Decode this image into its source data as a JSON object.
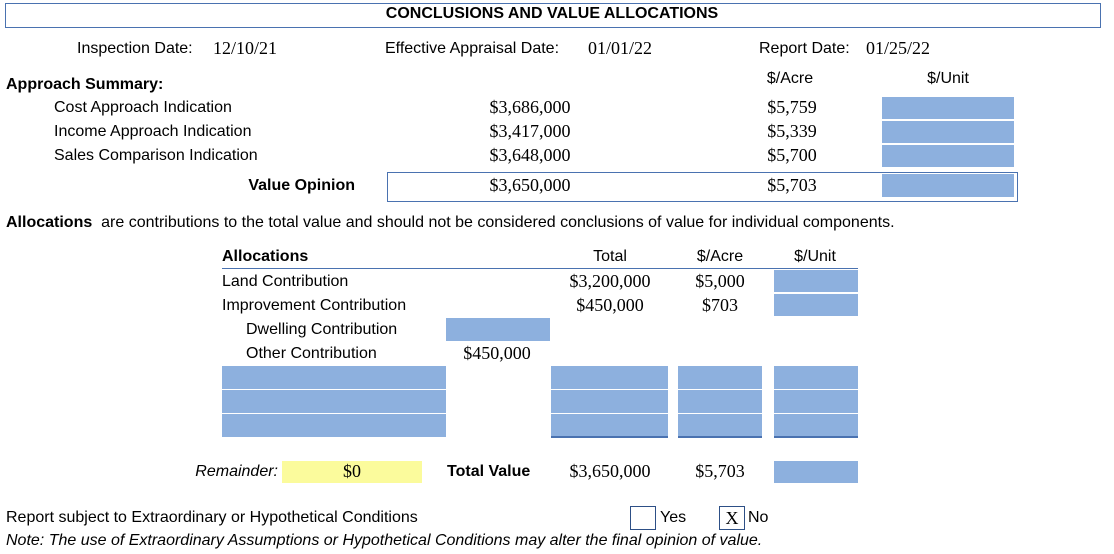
{
  "title": "CONCLUSIONS AND VALUE ALLOCATIONS",
  "dates": {
    "inspection_label": "Inspection Date:",
    "inspection": "12/10/21",
    "effective_label": "Effective Appraisal Date:",
    "effective": "01/01/22",
    "report_label": "Report Date:",
    "report": "01/25/22"
  },
  "approach": {
    "heading": "Approach Summary:",
    "acre_header": "$/Acre",
    "unit_header": "$/Unit",
    "rows": [
      {
        "label": "Cost Approach Indication",
        "value": "$3,686,000",
        "per_acre": "$5,759"
      },
      {
        "label": "Income Approach Indication",
        "value": "$3,417,000",
        "per_acre": "$5,339"
      },
      {
        "label": "Sales Comparison Indication",
        "value": "$3,648,000",
        "per_acre": "$5,700"
      }
    ],
    "opinion_label": "Value Opinion",
    "opinion_value": "$3,650,000",
    "opinion_per_acre": "$5,703"
  },
  "alloc_note": {
    "bold": "Allocations",
    "text": "are contributions to the total value and should not be considered conclusions of value for individual components."
  },
  "alloc": {
    "h_label": "Allocations",
    "h_total": "Total",
    "h_acre": "$/Acre",
    "h_unit": "$/Unit",
    "land_label": "Land Contribution",
    "land_total": "$3,200,000",
    "land_acre": "$5,000",
    "impr_label": "Improvement Contribution",
    "impr_total": "$450,000",
    "impr_acre": "$703",
    "dwelling_label": "Dwelling Contribution",
    "other_label": "Other Contribution",
    "other_value": "$450,000",
    "remainder_label": "Remainder:",
    "remainder_value": "$0",
    "total_label": "Total Value",
    "total_value": "$3,650,000",
    "total_acre": "$5,703"
  },
  "conditions": {
    "label": "Report subject to Extraordinary or Hypothetical Conditions",
    "yes_label": "Yes",
    "no_label": "No",
    "no_mark": "X",
    "note": "Note: The use of Extraordinary Assumptions or Hypothetical Conditions may alter the final opinion of value."
  }
}
